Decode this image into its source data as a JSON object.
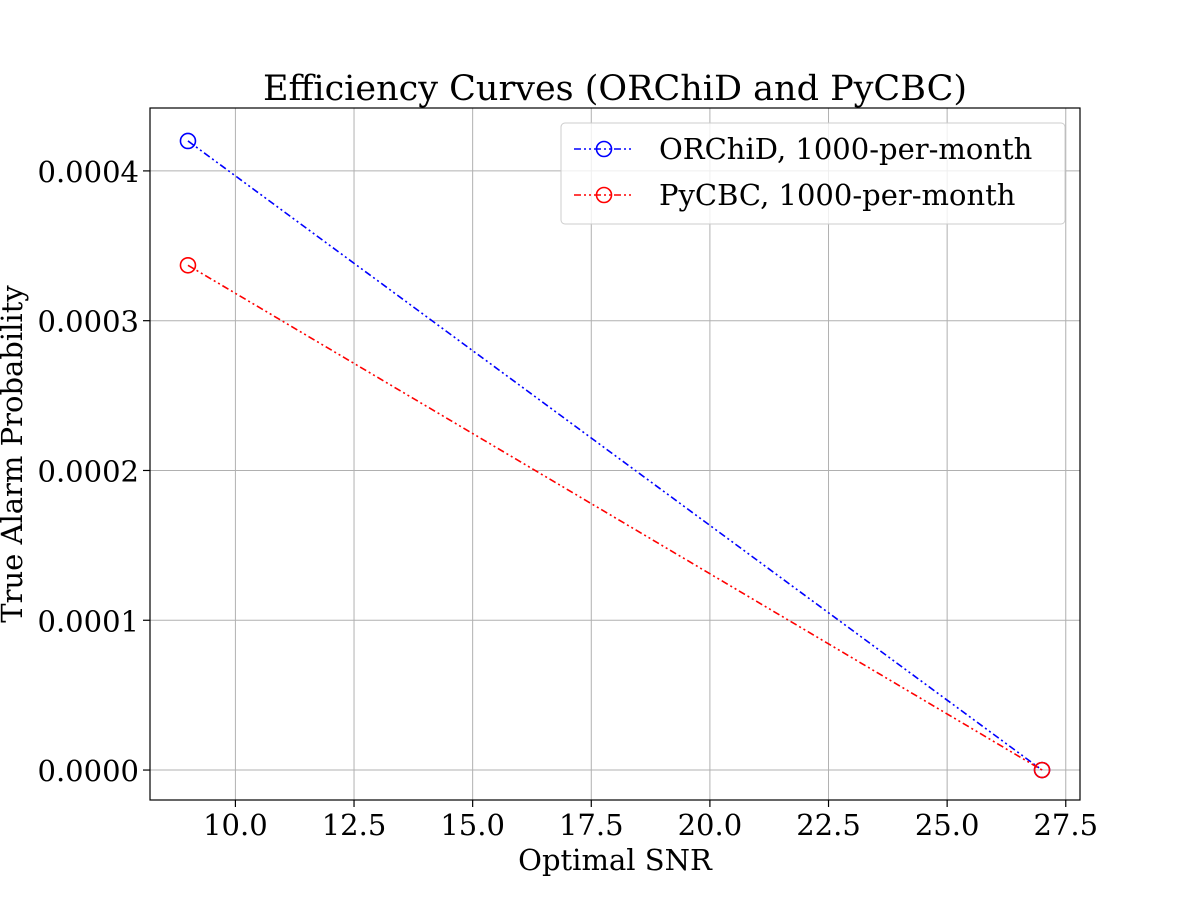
{
  "chart_data": {
    "type": "line",
    "title": "Efficiency Curves (ORChiD and PyCBC)",
    "xlabel": "Optimal SNR",
    "ylabel": "True Alarm Probability",
    "xlim": [
      8.2,
      27.8
    ],
    "ylim": [
      -2e-05,
      0.000442
    ],
    "x_ticks": [
      10.0,
      12.5,
      15.0,
      17.5,
      20.0,
      22.5,
      25.0,
      27.5
    ],
    "x_tick_labels": [
      "10.0",
      "12.5",
      "15.0",
      "17.5",
      "20.0",
      "22.5",
      "25.0",
      "27.5"
    ],
    "y_ticks": [
      0.0,
      0.0001,
      0.0002,
      0.0003,
      0.0004
    ],
    "y_tick_labels": [
      "0.0000",
      "0.0001",
      "0.0002",
      "0.0003",
      "0.0004"
    ],
    "grid": true,
    "legend_position": "top-right",
    "series": [
      {
        "name": "ORChiD, 1000-per-month",
        "color": "#0000ff",
        "marker": "open-circle",
        "linestyle": "dash-dot-dot",
        "x": [
          9,
          27
        ],
        "y": [
          0.00042,
          0.0
        ]
      },
      {
        "name": "PyCBC, 1000-per-month",
        "color": "#ff0000",
        "marker": "open-circle",
        "linestyle": "dash-dot-dot",
        "x": [
          9,
          27
        ],
        "y": [
          0.000337,
          0.0
        ]
      }
    ]
  }
}
